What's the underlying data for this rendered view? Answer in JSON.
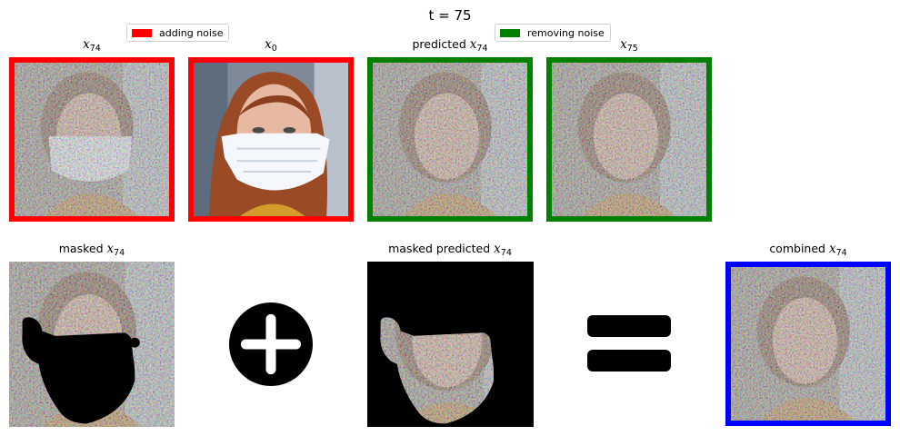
{
  "title": "t = 75",
  "legend": {
    "adding_noise": {
      "label": "adding noise",
      "color": "#ff0000"
    },
    "removing_noise": {
      "label": "removing noise",
      "color": "#008000"
    }
  },
  "panels": {
    "x74": {
      "var": "x",
      "sub": "74",
      "prefix": "",
      "border_color": "#ff0000",
      "image": "noisy-face-with-mask"
    },
    "x0": {
      "var": "x",
      "sub": "0",
      "prefix": "",
      "border_color": "#ff0000",
      "image": "clean-face-with-mask-photo"
    },
    "predicted_x74": {
      "var": "x",
      "sub": "74",
      "prefix": "predicted",
      "border_color": "#008000",
      "image": "noisy-face-no-mask"
    },
    "x75": {
      "var": "x",
      "sub": "75",
      "prefix": "",
      "border_color": "#008000",
      "image": "noisy-face-no-mask"
    },
    "masked_x74": {
      "var": "x",
      "sub": "74",
      "prefix": "masked",
      "image": "noisy-face-with-black-mask-region"
    },
    "masked_predicted_x74": {
      "var": "x",
      "sub": "74",
      "prefix": "masked predicted",
      "image": "noisy-mask-region-on-black"
    },
    "combined_x74": {
      "var": "x",
      "sub": "74",
      "prefix": "combined",
      "border_color": "#0000ff",
      "image": "noisy-face-no-mask"
    }
  },
  "operators": {
    "plus": "plus-icon",
    "equals": "equals-icon"
  }
}
